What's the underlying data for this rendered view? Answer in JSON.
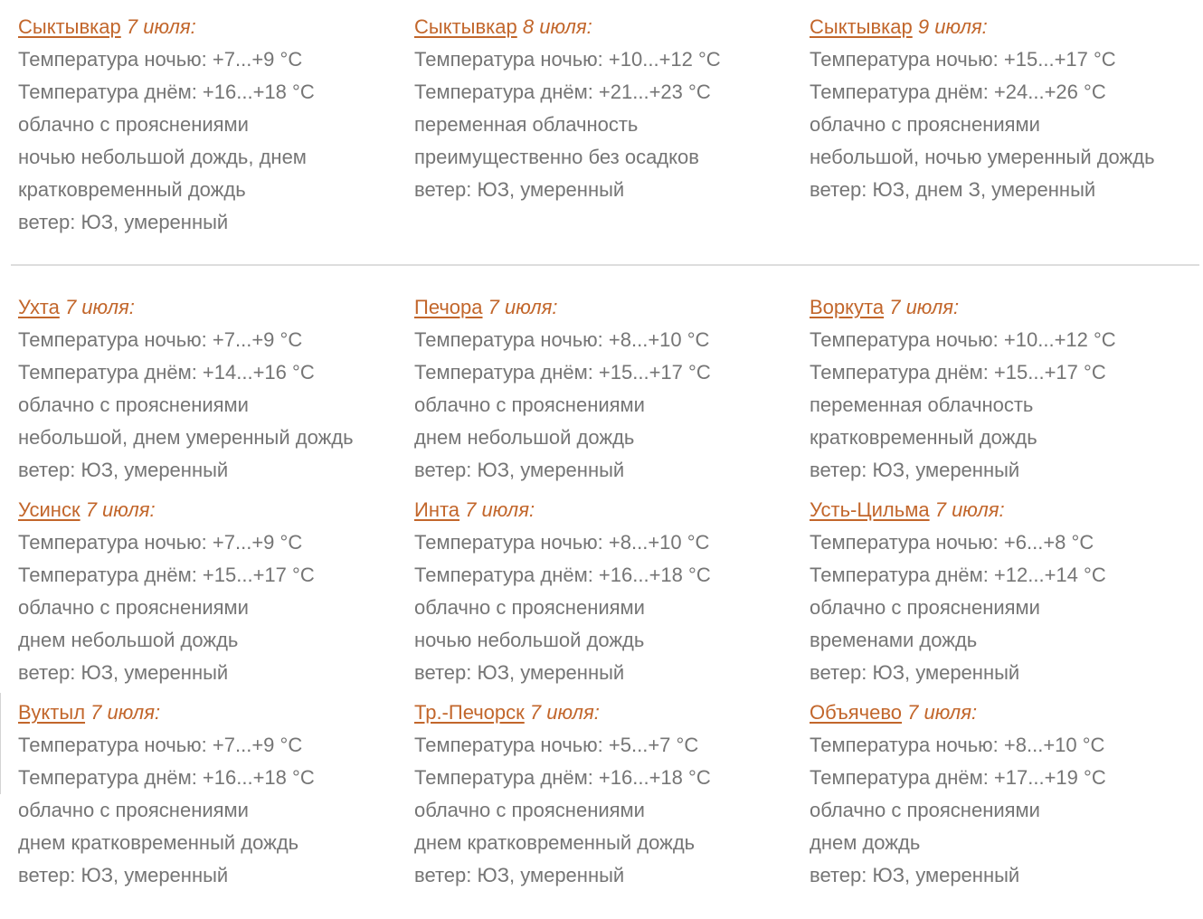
{
  "colors": {
    "accent_link": "#c2662b",
    "body_text": "#757575",
    "divider": "#dddddd",
    "background": "#ffffff"
  },
  "forecast": {
    "top_blocks": [
      {
        "city": "Сыктывкар",
        "date": "7 июля:",
        "lines": [
          "Температура ночью: +7...+9 °С",
          "Температура днём: +16...+18 °С",
          "облачно с прояснениями",
          "ночью небольшой дождь, днем кратковременный дождь",
          "ветер: ЮЗ, умеренный"
        ]
      },
      {
        "city": "Сыктывкар",
        "date": "8 июля:",
        "lines": [
          "Температура ночью: +10...+12 °С",
          "Температура днём: +21...+23 °С",
          "переменная облачность",
          "преимущественно без осадков",
          "ветер: ЮЗ, умеренный"
        ]
      },
      {
        "city": "Сыктывкар",
        "date": "9 июля:",
        "lines": [
          "Температура ночью: +15...+17 °С",
          "Температура днём: +24...+26 °С",
          "облачно с прояснениями",
          "небольшой, ночью умеренный дождь",
          "ветер: ЮЗ, днем З, умеренный"
        ]
      }
    ],
    "main_blocks": [
      {
        "city": "Ухта",
        "date": "7 июля:",
        "lines": [
          "Температура ночью: +7...+9 °С",
          "Температура днём: +14...+16 °С",
          "облачно с прояснениями",
          "небольшой, днем умеренный дождь",
          "ветер: ЮЗ, умеренный"
        ]
      },
      {
        "city": "Печора",
        "date": "7 июля:",
        "lines": [
          "Температура ночью: +8...+10 °С",
          "Температура днём: +15...+17 °С",
          "облачно с прояснениями",
          "днем небольшой дождь",
          "ветер: ЮЗ, умеренный"
        ]
      },
      {
        "city": "Воркута",
        "date": "7 июля:",
        "lines": [
          "Температура ночью: +10...+12 °С",
          "Температура днём: +15...+17 °С",
          "переменная облачность",
          "кратковременный дождь",
          "ветер: ЮЗ, умеренный"
        ]
      },
      {
        "city": "Усинск",
        "date": "7 июля:",
        "lines": [
          "Температура ночью: +7...+9 °С",
          "Температура днём: +15...+17 °С",
          "облачно с прояснениями",
          "днем небольшой дождь",
          "ветер: ЮЗ, умеренный"
        ]
      },
      {
        "city": "Инта",
        "date": "7 июля:",
        "lines": [
          "Температура ночью: +8...+10 °С",
          "Температура днём: +16...+18 °С",
          "облачно с прояснениями",
          "ночью небольшой дождь",
          "ветер: ЮЗ, умеренный"
        ]
      },
      {
        "city": "Усть-Цильма",
        "date": "7 июля:",
        "lines": [
          "Температура ночью: +6...+8 °С",
          "Температура днём: +12...+14 °С",
          "облачно с прояснениями",
          "временами дождь",
          "ветер: ЮЗ, умеренный"
        ]
      },
      {
        "city": "Вуктыл",
        "date": "7 июля:",
        "lines": [
          "Температура ночью: +7...+9 °С",
          "Температура днём: +16...+18 °С",
          "облачно с прояснениями",
          "днем кратковременный дождь",
          "ветер: ЮЗ, умеренный"
        ]
      },
      {
        "city": "Тр.-Печорск",
        "date": "7 июля:",
        "lines": [
          "Температура ночью: +5...+7 °С",
          "Температура днём: +16...+18 °С",
          "облачно с прояснениями",
          "днем кратковременный дождь",
          "ветер: ЮЗ, умеренный"
        ]
      },
      {
        "city": "Объячево",
        "date": "7 июля:",
        "lines": [
          "Температура ночью: +8...+10 °С",
          "Температура днём: +17...+19 °С",
          "облачно с прояснениями",
          "днем дождь",
          "ветер: ЮЗ, умеренный"
        ]
      }
    ]
  }
}
